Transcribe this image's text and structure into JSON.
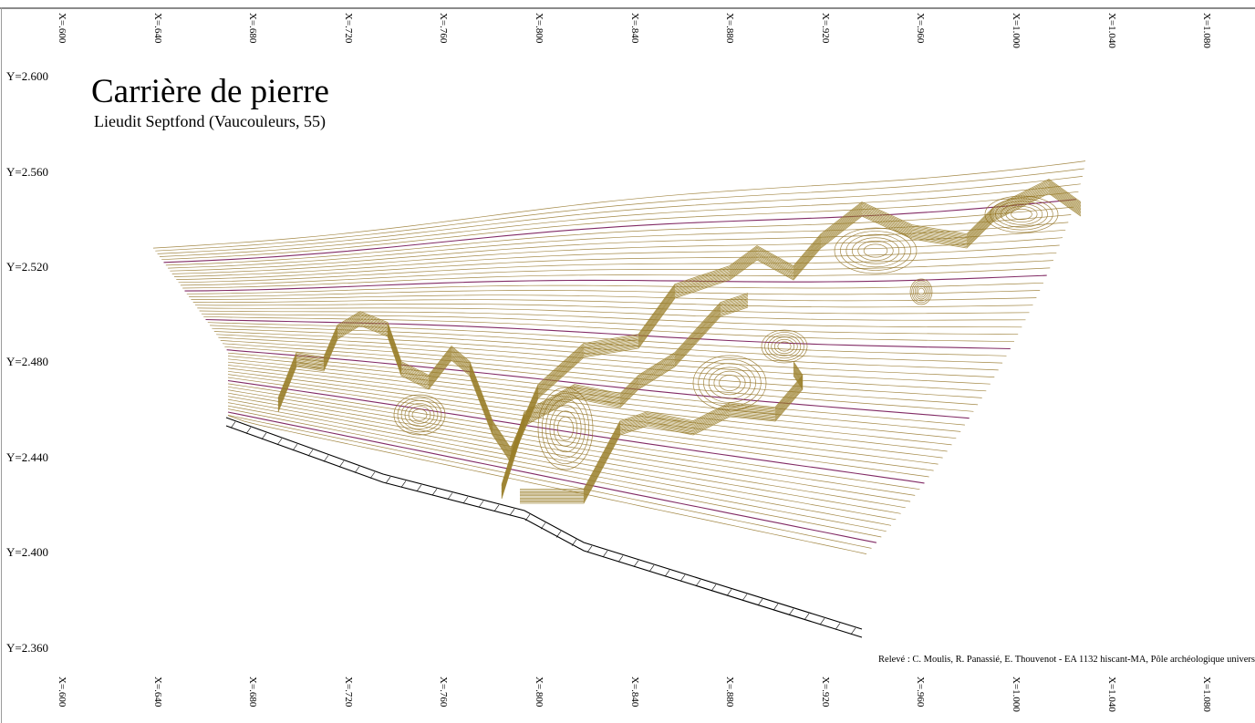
{
  "title": "Carrière de pierre",
  "subtitle": "Lieudit Septfond (Vaucouleurs, 55)",
  "credits": "Relevé : C. Moulis, R. Panassié, E. Thouvenot - EA 1132 hiscant-MA, Pôle archéologique univers",
  "x_ticks_top": [
    "X=.600",
    "X=.640",
    "X=.680",
    "X=.720",
    "X=.760",
    "X=.800",
    "X=.840",
    "X=.880",
    "X=.920",
    "X=.960",
    "X=1.000",
    "X=1.040",
    "X=1.080"
  ],
  "x_ticks_bottom": [
    "X=.600",
    "X=.640",
    "X=.680",
    "X=.720",
    "X=.760",
    "X=.800",
    "X=.840",
    "X=.880",
    "X=.920",
    "X=.960",
    "X=1.000",
    "X=1.040",
    "X=1.080"
  ],
  "y_ticks": [
    "Y=2.600",
    "Y=2.560",
    "Y=2.520",
    "Y=2.480",
    "Y=2.440",
    "Y=2.400",
    "Y=2.360"
  ],
  "colors": {
    "contour_minor": "#8c6a18",
    "contour_major": "#7a1f5c",
    "scarp": "#9a7f2a",
    "boundary": "#000000",
    "frame": "#8a8a8a"
  }
}
